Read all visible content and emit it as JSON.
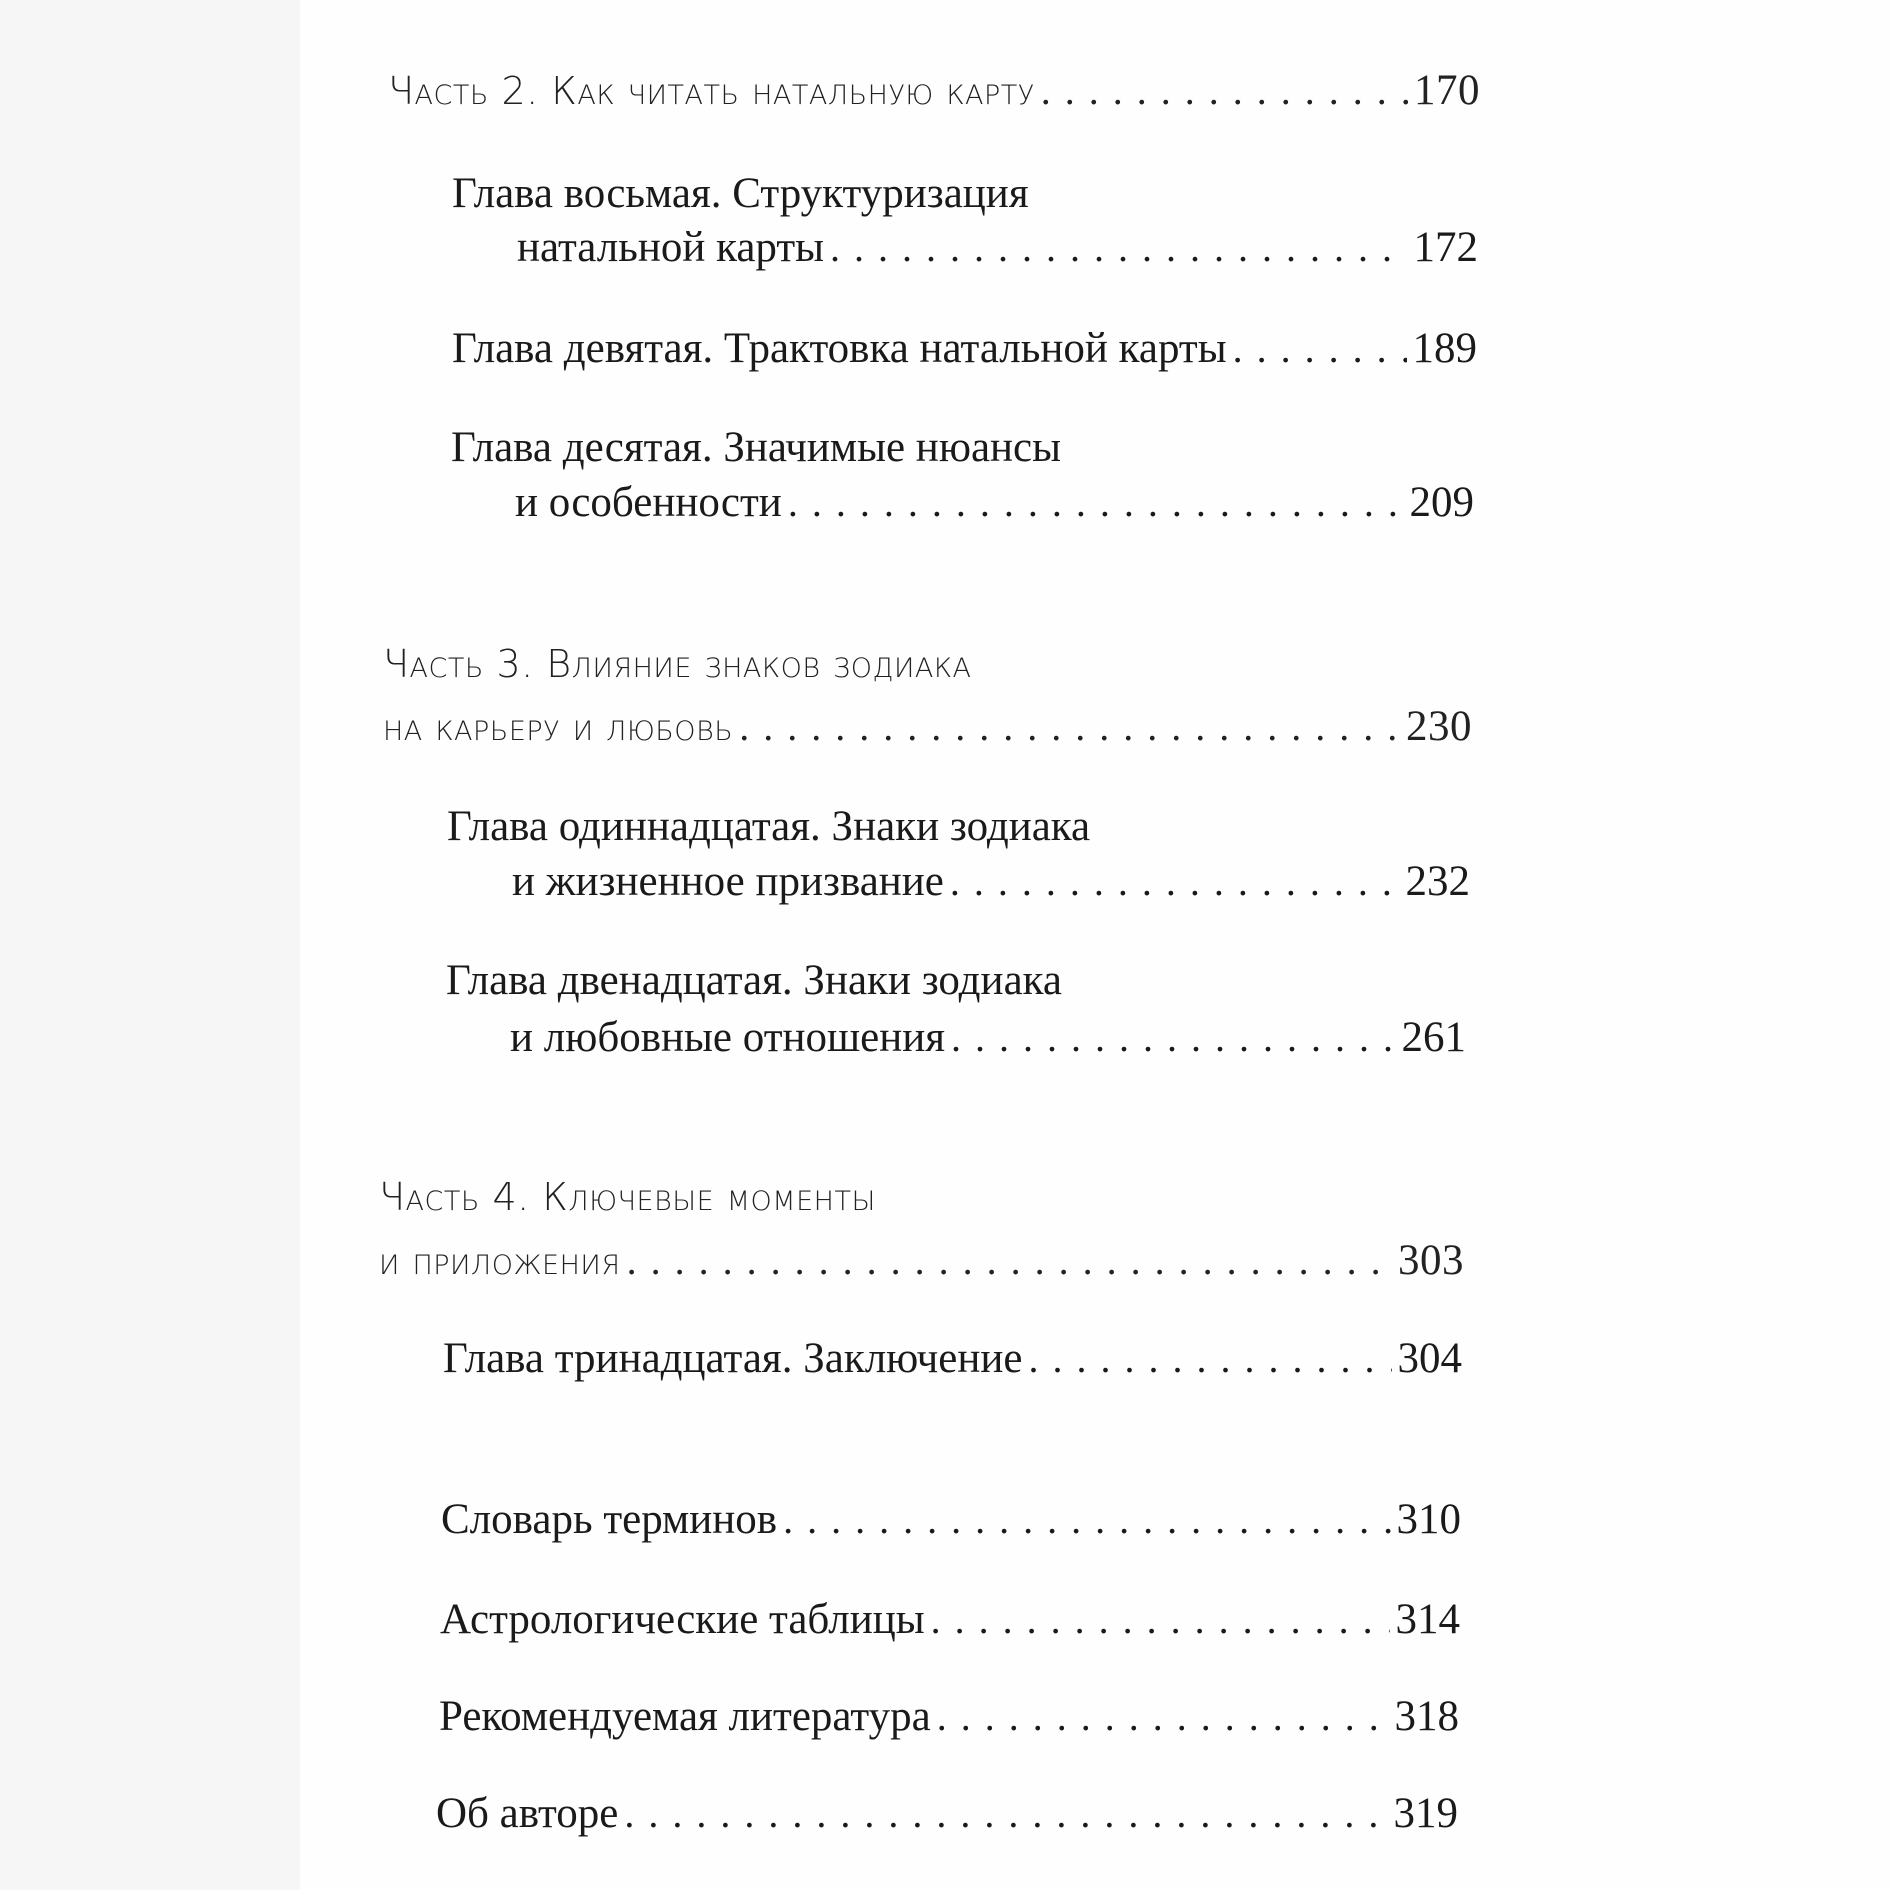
{
  "toc": {
    "part2": {
      "title": "Часть 2. Как читать натальную карту",
      "page": "170"
    },
    "ch8": {
      "line1": "Глава восьмая. Структуризация",
      "line2": "натальной карты",
      "page": "172"
    },
    "ch9": {
      "title": "Глава девятая. Трактовка натальной карты",
      "page": "189"
    },
    "ch10": {
      "line1": "Глава десятая. Значимые нюансы",
      "line2": "и особенности",
      "page": "209"
    },
    "part3": {
      "line1": "Часть 3. Влияние знаков зодиака",
      "line2": "на карьеру и любовь",
      "page": "230"
    },
    "ch11": {
      "line1": "Глава одиннадцатая. Знаки зодиака",
      "line2": "и жизненное призвание",
      "page": "232"
    },
    "ch12": {
      "line1": "Глава двенадцатая. Знаки зодиака",
      "line2": "и любовные отношения",
      "page": "261"
    },
    "part4": {
      "line1": "Часть 4. Ключевые моменты",
      "line2": "и приложения",
      "page": "303"
    },
    "ch13": {
      "title": "Глава тринадцатая. Заключение",
      "page": "304"
    },
    "glossary": {
      "title": "Словарь терминов",
      "page": "310"
    },
    "tables": {
      "title": "Астрологические таблицы",
      "page": "314"
    },
    "literature": {
      "title": "Рекомендуемая литература",
      "page": "318"
    },
    "author": {
      "title": "Об авторе",
      "page": "319"
    }
  }
}
